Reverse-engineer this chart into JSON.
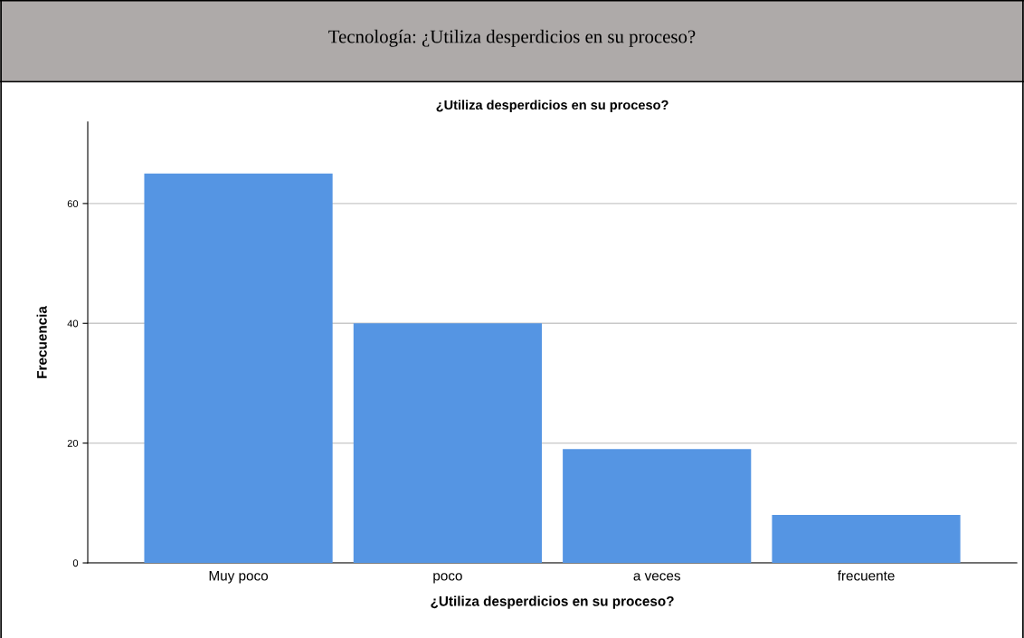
{
  "chart_data": {
    "type": "bar",
    "title": "Tecnología: ¿Utiliza desperdicios en su proceso?",
    "subtitle": "¿Utiliza desperdicios en su proceso?",
    "xlabel": "¿Utiliza desperdicios en su proceso?",
    "ylabel": "Frecuencia",
    "categories": [
      "Muy poco",
      "poco",
      "a veces",
      "frecuente"
    ],
    "values": [
      65,
      40,
      19,
      8
    ],
    "color": "#5595e3",
    "ylim": [
      0,
      73.6
    ],
    "yticks": [
      0,
      20,
      40,
      60
    ],
    "grid": "y"
  }
}
